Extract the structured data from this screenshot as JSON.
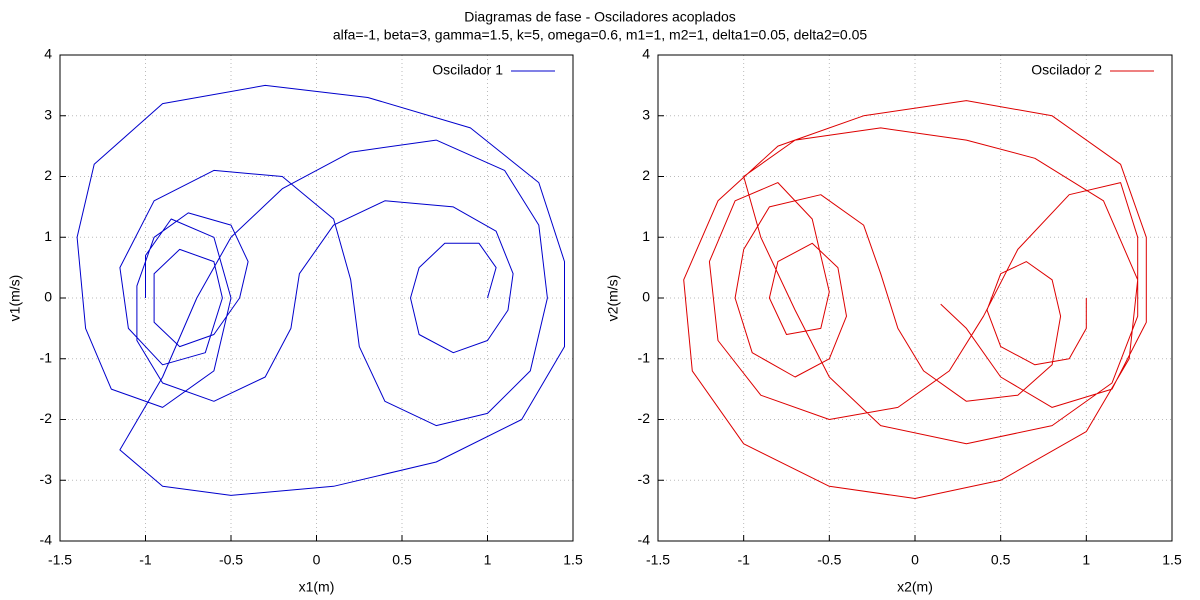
{
  "title": "Diagramas de fase - Osciladores acoplados",
  "subtitle": "alfa=-1, beta=3, gamma=1.5, k=5, omega=0.6, m1=1, m2=1, delta1=0.05, delta2=0.05",
  "chart_data": [
    {
      "type": "line",
      "xlabel": "x1(m)",
      "ylabel": "v1(m/s)",
      "xlim": [
        -1.5,
        1.5
      ],
      "ylim": [
        -4,
        4
      ],
      "xticks": [
        -1.5,
        -1,
        -0.5,
        0,
        0.5,
        1,
        1.5
      ],
      "yticks": [
        -4,
        -3,
        -2,
        -1,
        0,
        1,
        2,
        3,
        4
      ],
      "grid": true,
      "legend": "top-right",
      "series": [
        {
          "name": "Oscilador 1",
          "color": "#0000cc",
          "x": [
            1.0,
            1.05,
            0.95,
            0.75,
            0.6,
            0.55,
            0.6,
            0.8,
            1.0,
            1.12,
            1.15,
            1.05,
            0.8,
            0.4,
            0.1,
            -0.1,
            -0.15,
            -0.3,
            -0.6,
            -0.9,
            -1.05,
            -1.05,
            -0.95,
            -0.75,
            -0.5,
            -0.4,
            -0.45,
            -0.6,
            -0.8,
            -0.95,
            -0.95,
            -0.8,
            -0.6,
            -0.55,
            -0.65,
            -0.9,
            -1.1,
            -1.15,
            -0.95,
            -0.6,
            -0.2,
            0.1,
            0.2,
            0.25,
            0.4,
            0.7,
            1.0,
            1.25,
            1.35,
            1.3,
            1.1,
            0.7,
            0.2,
            -0.2,
            -0.5,
            -0.7,
            -0.9,
            -1.15,
            -0.9,
            -0.5,
            0.1,
            0.7,
            1.2,
            1.45,
            1.45,
            1.3,
            0.9,
            0.3,
            -0.3,
            -0.9,
            -1.3,
            -1.4,
            -1.35,
            -1.2,
            -0.9,
            -0.6,
            -0.5,
            -0.6,
            -0.85,
            -1.0,
            -1.0
          ],
          "values": [
            0.0,
            0.5,
            0.9,
            0.9,
            0.5,
            0.0,
            -0.6,
            -0.9,
            -0.7,
            -0.2,
            0.4,
            1.1,
            1.5,
            1.6,
            1.2,
            0.4,
            -0.5,
            -1.3,
            -1.7,
            -1.4,
            -0.7,
            0.2,
            1.0,
            1.4,
            1.2,
            0.6,
            0.0,
            -0.6,
            -0.8,
            -0.4,
            0.4,
            0.8,
            0.6,
            0.0,
            -0.9,
            -1.1,
            -0.5,
            0.5,
            1.6,
            2.1,
            2.0,
            1.3,
            0.3,
            -0.8,
            -1.7,
            -2.1,
            -1.9,
            -1.2,
            0.0,
            1.2,
            2.1,
            2.6,
            2.4,
            1.8,
            1.0,
            0.0,
            -1.3,
            -2.5,
            -3.1,
            -3.25,
            -3.1,
            -2.7,
            -2.0,
            -0.8,
            0.6,
            1.9,
            2.8,
            3.3,
            3.5,
            3.2,
            2.2,
            1.0,
            -0.5,
            -1.5,
            -1.8,
            -1.2,
            0.0,
            1.0,
            1.3,
            0.7,
            0.0
          ]
        }
      ]
    },
    {
      "type": "line",
      "xlabel": "x2(m)",
      "ylabel": "v2(m/s)",
      "xlim": [
        -1.5,
        1.5
      ],
      "ylim": [
        -4,
        4
      ],
      "xticks": [
        -1.5,
        -1,
        -0.5,
        0,
        0.5,
        1,
        1.5
      ],
      "yticks": [
        -4,
        -3,
        -2,
        -1,
        0,
        1,
        2,
        3,
        4
      ],
      "grid": true,
      "legend": "top-right",
      "series": [
        {
          "name": "Oscilador 2",
          "color": "#dd0000",
          "x": [
            1.0,
            1.0,
            0.9,
            0.7,
            0.5,
            0.42,
            0.5,
            0.65,
            0.8,
            0.85,
            0.8,
            0.6,
            0.3,
            0.05,
            -0.1,
            -0.2,
            -0.3,
            -0.55,
            -0.85,
            -1.0,
            -1.05,
            -0.95,
            -0.7,
            -0.5,
            -0.4,
            -0.45,
            -0.6,
            -0.8,
            -0.85,
            -0.75,
            -0.55,
            -0.5,
            -0.6,
            -0.8,
            -1.05,
            -1.2,
            -1.15,
            -0.9,
            -0.5,
            -0.1,
            0.2,
            0.4,
            0.6,
            0.9,
            1.2,
            1.3,
            1.3,
            1.15,
            0.8,
            0.3,
            -0.2,
            -0.5,
            -0.7,
            -0.9,
            -1.0,
            -0.7,
            -0.2,
            0.3,
            0.7,
            1.1,
            1.3,
            1.25,
            1.0,
            0.5,
            0.0,
            -0.5,
            -1.0,
            -1.3,
            -1.35,
            -1.15,
            -0.8,
            -0.3,
            0.3,
            0.8,
            1.2,
            1.35,
            1.35,
            1.15,
            0.8,
            0.5,
            0.3,
            0.15
          ],
          "values": [
            0.0,
            -0.5,
            -1.0,
            -1.1,
            -0.8,
            -0.2,
            0.4,
            0.6,
            0.3,
            -0.3,
            -1.1,
            -1.6,
            -1.7,
            -1.2,
            -0.5,
            0.4,
            1.2,
            1.7,
            1.5,
            0.8,
            0.0,
            -0.9,
            -1.3,
            -1.0,
            -0.3,
            0.5,
            0.9,
            0.6,
            0.0,
            -0.6,
            -0.5,
            0.1,
            1.3,
            1.9,
            1.6,
            0.6,
            -0.7,
            -1.6,
            -2.0,
            -1.8,
            -1.2,
            -0.3,
            0.8,
            1.7,
            1.9,
            1.0,
            -0.3,
            -1.4,
            -2.1,
            -2.4,
            -2.1,
            -1.3,
            -0.2,
            1.0,
            2.0,
            2.6,
            2.8,
            2.6,
            2.3,
            1.6,
            0.3,
            -1.0,
            -2.2,
            -3.0,
            -3.3,
            -3.1,
            -2.4,
            -1.2,
            0.3,
            1.6,
            2.5,
            3.0,
            3.25,
            3.0,
            2.2,
            1.0,
            -0.4,
            -1.5,
            -1.8,
            -1.3,
            -0.5,
            -0.1
          ]
        }
      ]
    }
  ]
}
